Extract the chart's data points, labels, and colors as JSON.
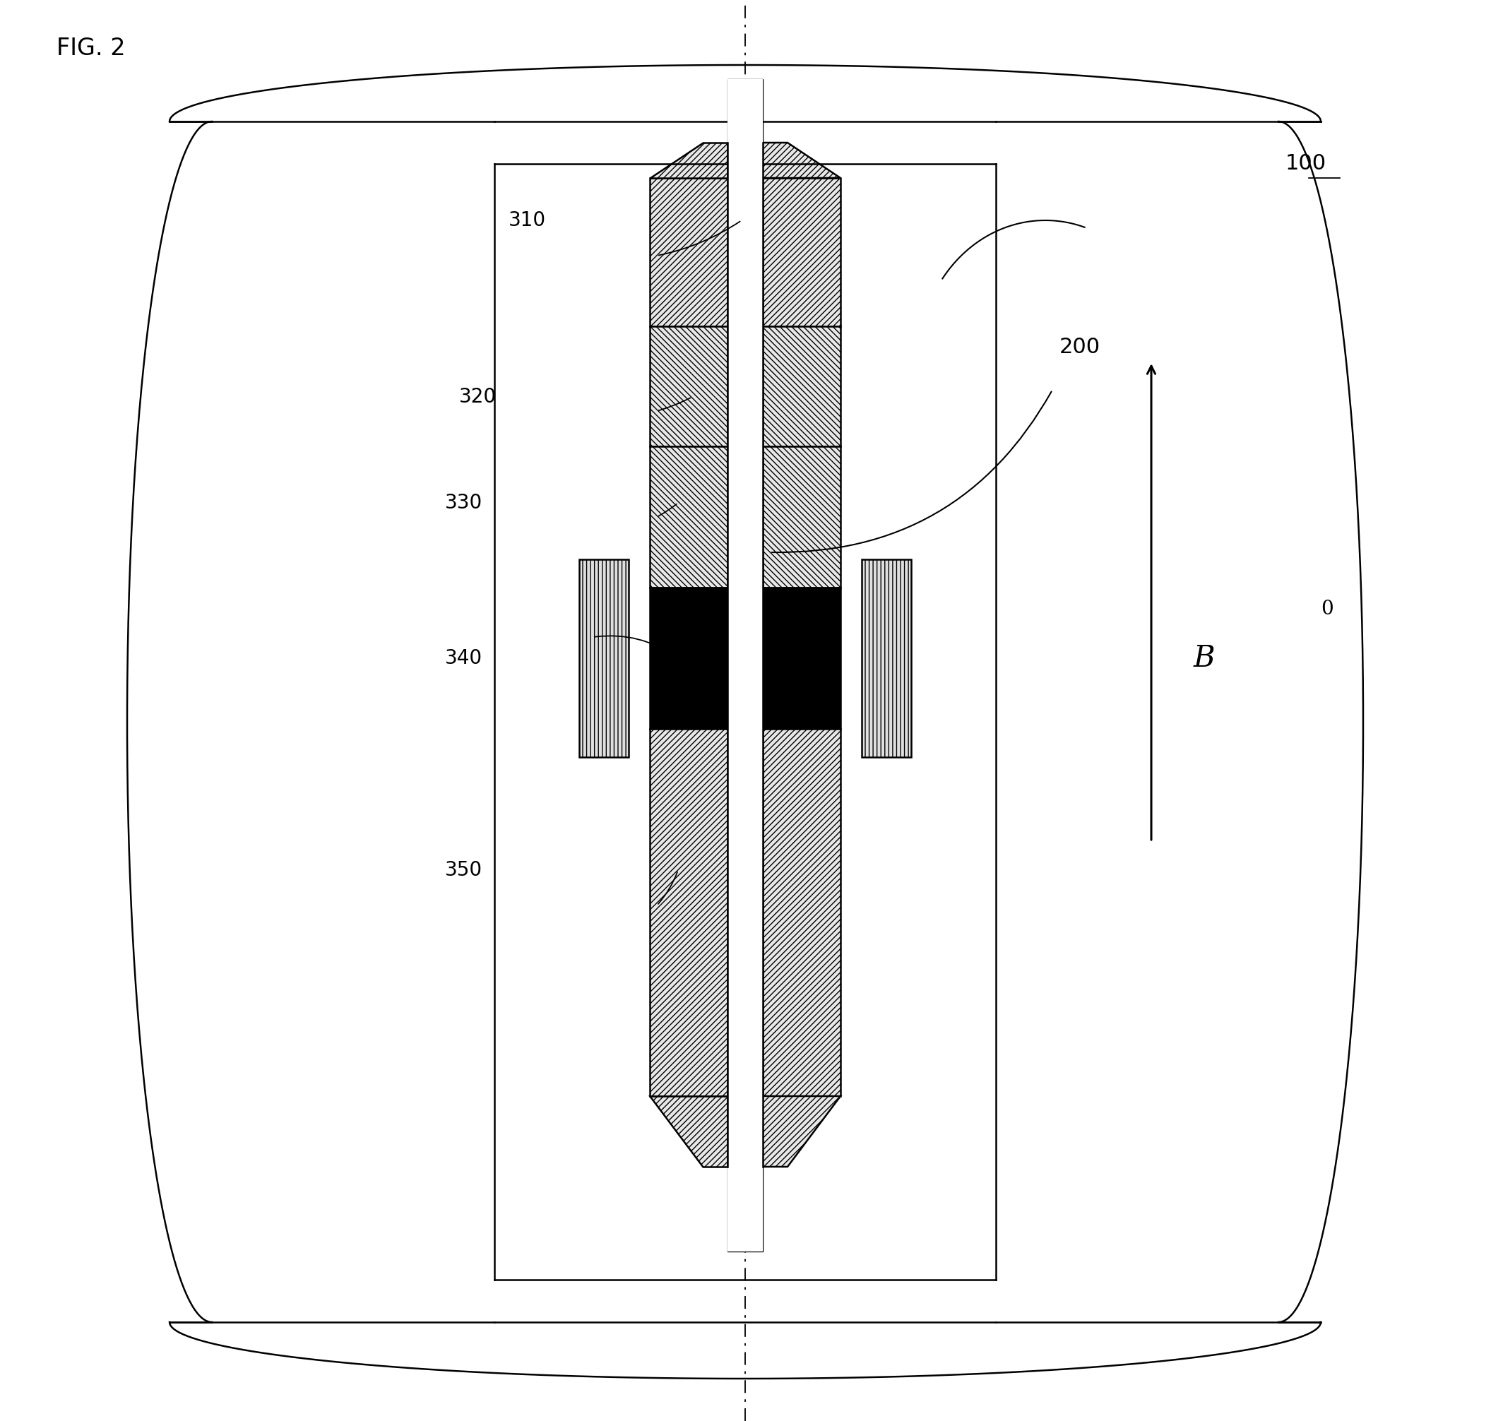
{
  "title": "FIG. 2",
  "label_100": "100",
  "label_200": "200",
  "label_310": "310",
  "label_320": "320",
  "label_330": "330",
  "label_340": "340",
  "label_350": "350",
  "label_B0": "B",
  "label_B0_sub": "0",
  "bg_color": "#ffffff",
  "line_color": "#000000",
  "hatch_fc": "#ffffff",
  "wall_color": "#ffffff"
}
